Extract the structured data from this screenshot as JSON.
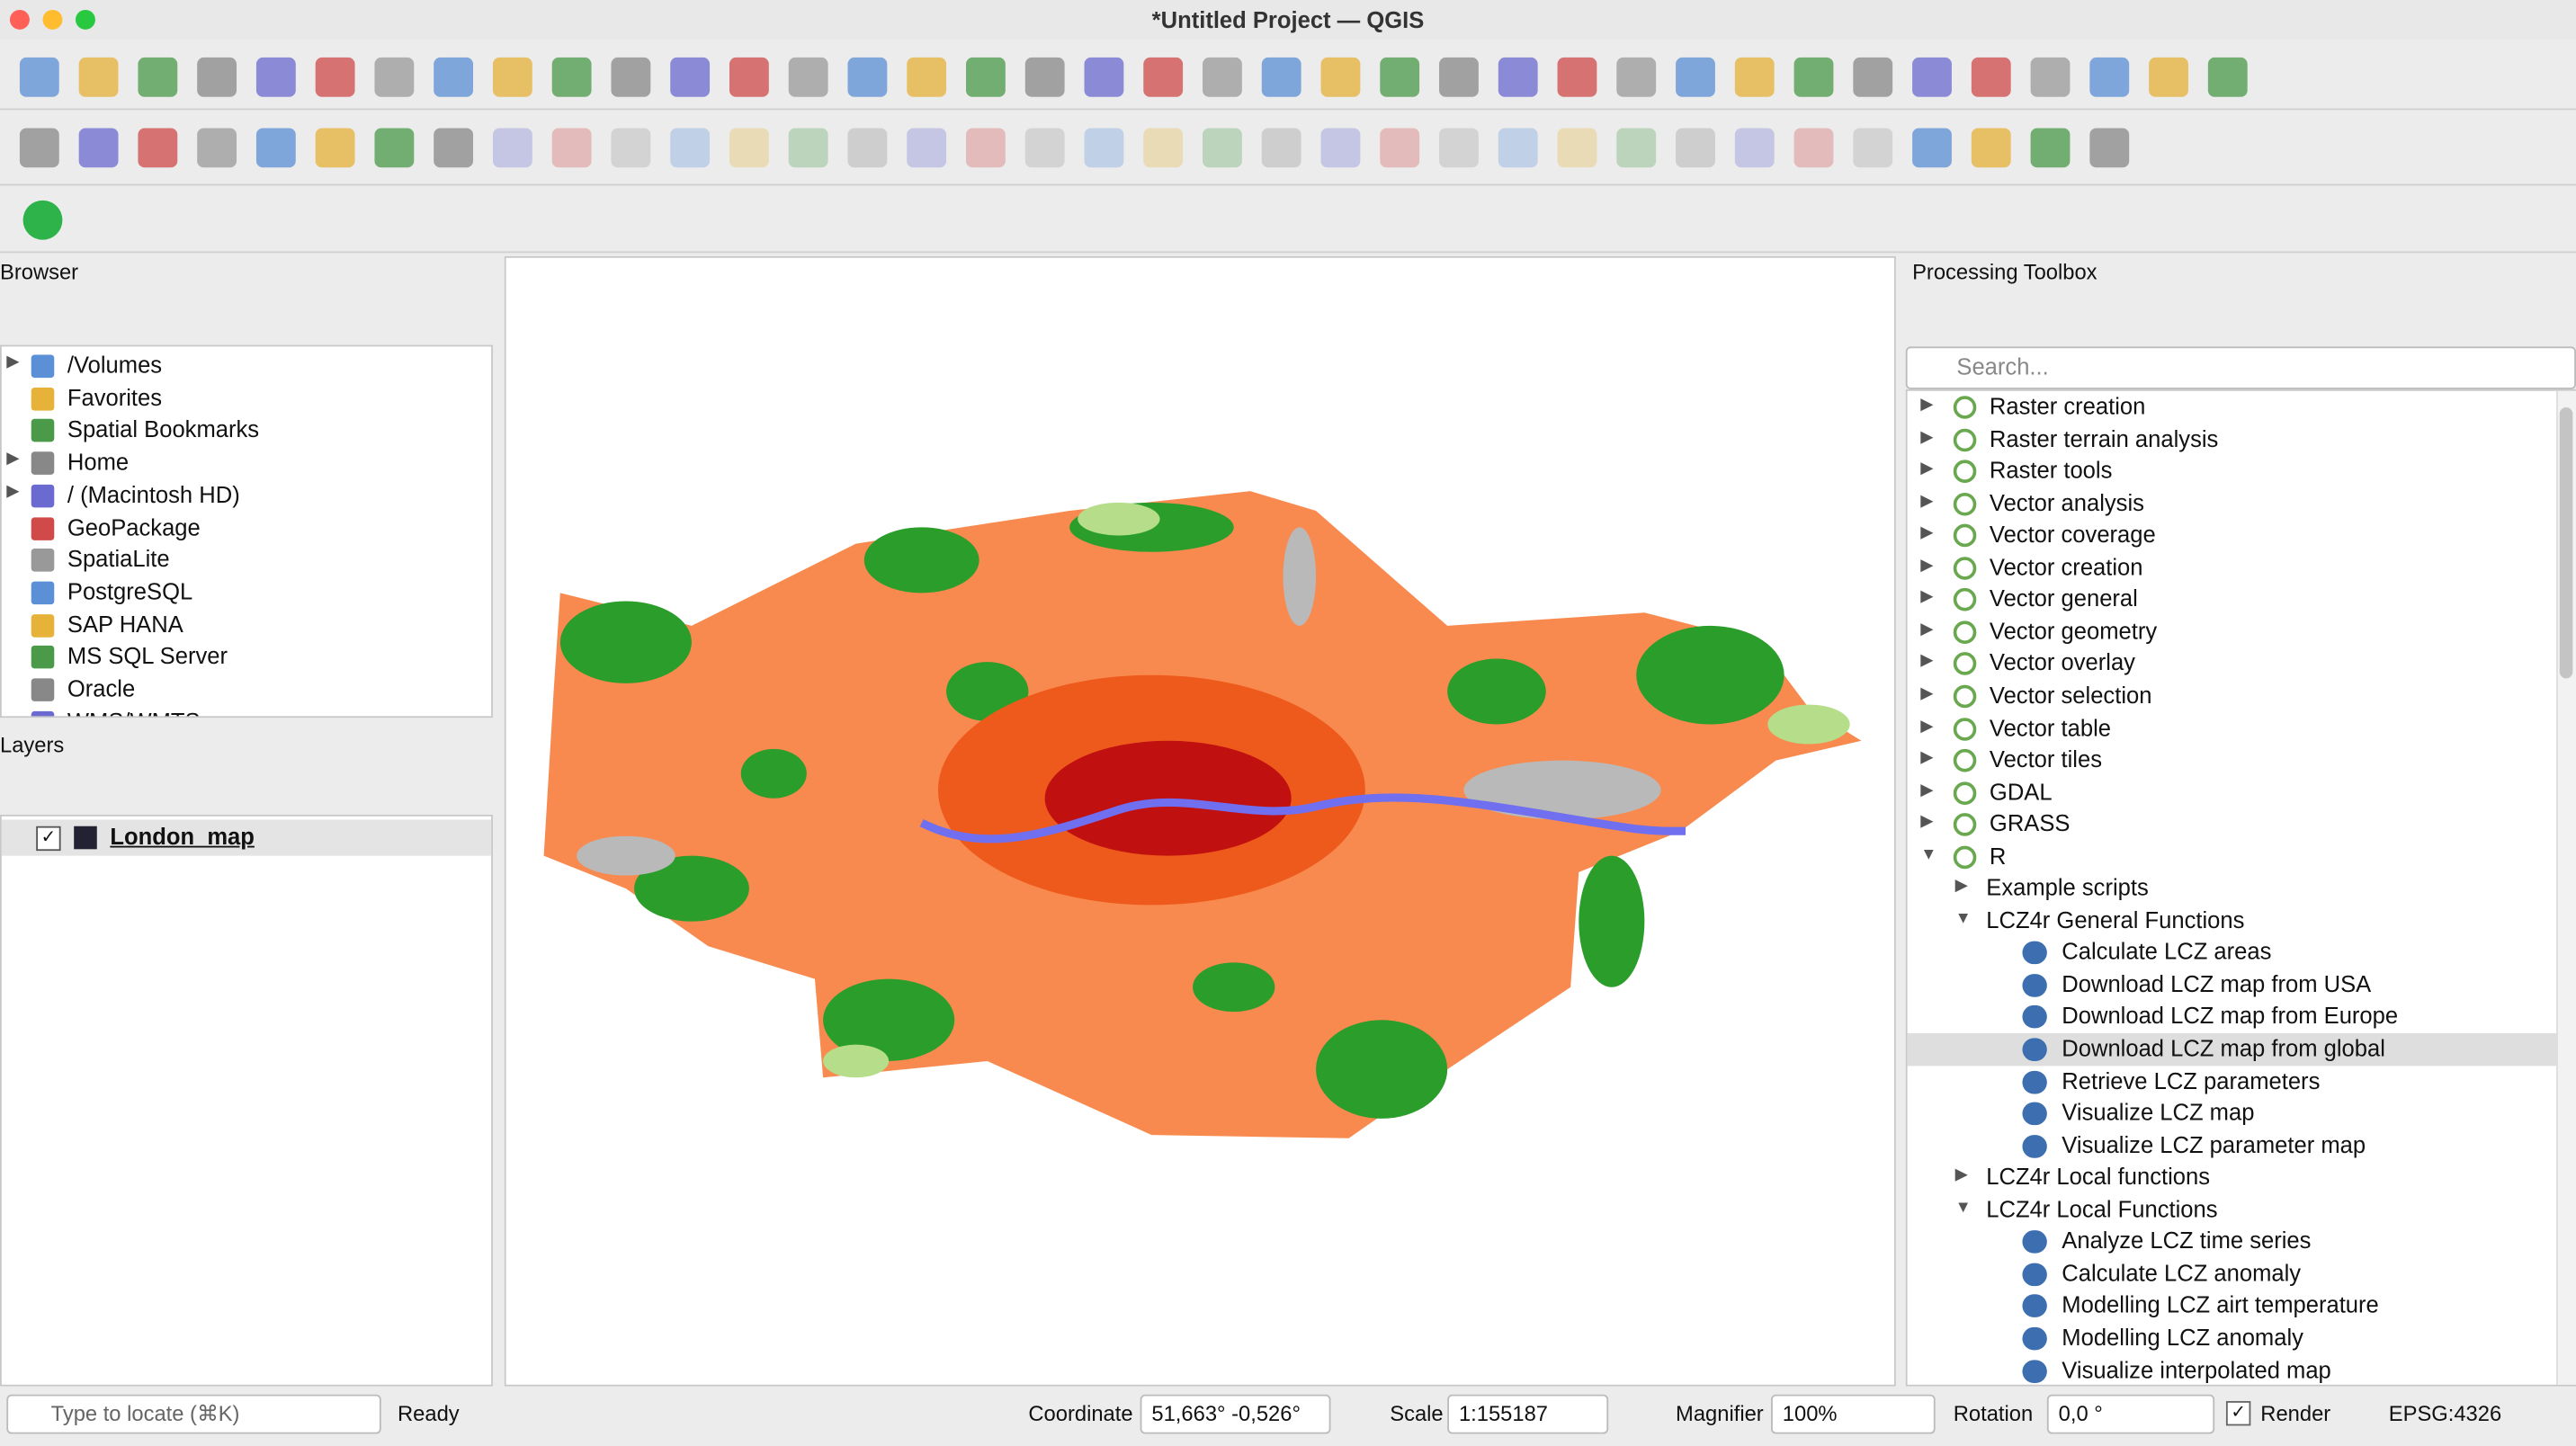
{
  "window": {
    "title": "*Untitled Project — QGIS"
  },
  "browser": {
    "title": "Browser",
    "items": [
      "/Volumes",
      "Favorites",
      "Spatial Bookmarks",
      "Home",
      "/ (Macintosh HD)",
      "GeoPackage",
      "SpatiaLite",
      "PostgreSQL",
      "SAP HANA",
      "MS SQL Server",
      "Oracle",
      "WMS/WMTS"
    ]
  },
  "layers": {
    "title": "Layers",
    "items": [
      "London_map"
    ]
  },
  "toolbox": {
    "title": "Processing Toolbox",
    "search_placeholder": "Search...",
    "tree": [
      {
        "label": "Raster creation"
      },
      {
        "label": "Raster terrain analysis"
      },
      {
        "label": "Raster tools"
      },
      {
        "label": "Vector analysis"
      },
      {
        "label": "Vector coverage"
      },
      {
        "label": "Vector creation"
      },
      {
        "label": "Vector general"
      },
      {
        "label": "Vector geometry"
      },
      {
        "label": "Vector overlay"
      },
      {
        "label": "Vector selection"
      },
      {
        "label": "Vector table"
      },
      {
        "label": "Vector tiles"
      },
      {
        "label": "GDAL"
      },
      {
        "label": "GRASS"
      },
      {
        "label": "R",
        "children": [
          {
            "label": "Example scripts"
          },
          {
            "label": "LCZ4r General Functions",
            "children": [
              {
                "label": "Calculate LCZ areas"
              },
              {
                "label": "Download  LCZ map from USA"
              },
              {
                "label": "Download LCZ map from Europe"
              },
              {
                "label": "Download LCZ map from global",
                "selected": true
              },
              {
                "label": "Retrieve LCZ parameters"
              },
              {
                "label": "Visualize LCZ map"
              },
              {
                "label": "Visualize LCZ parameter map"
              }
            ]
          },
          {
            "label": "LCZ4r Local functions"
          },
          {
            "label": "LCZ4r Local Functions",
            "children": [
              {
                "label": "Analyze LCZ time series"
              },
              {
                "label": "Calculate LCZ anomaly"
              },
              {
                "label": "Modelling LCZ airt temperature"
              },
              {
                "label": "Modelling LCZ anomaly"
              },
              {
                "label": "Visualize interpolated map"
              }
            ]
          }
        ]
      }
    ]
  },
  "status": {
    "locate_placeholder": "Type to locate (⌘K)",
    "message": "Ready",
    "coordinate_label": "Coordinate",
    "coordinate": "51,663° -0,526°",
    "scale_label": "Scale",
    "scale": "1:155187",
    "magnifier_label": "Magnifier",
    "magnifier": "100%",
    "rotation_label": "Rotation",
    "rotation": "0,0 °",
    "render_label": "Render",
    "crs": "EPSG:4326"
  }
}
